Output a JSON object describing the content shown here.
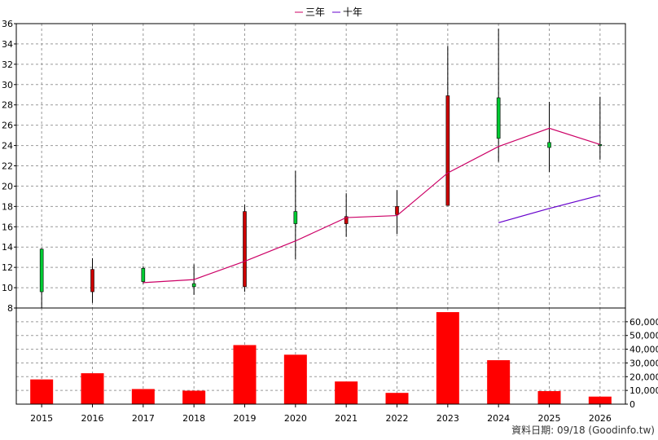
{
  "chart_data": [
    {
      "type": "candlestick",
      "legend": [
        {
          "name": "三年",
          "color": "#cc0066"
        },
        {
          "name": "十年",
          "color": "#6600cc"
        }
      ],
      "categories": [
        "2015",
        "2016",
        "2017",
        "2018",
        "2019",
        "2020",
        "2021",
        "2022",
        "2023",
        "2024",
        "2025",
        "2026"
      ],
      "ylim": [
        8,
        36
      ],
      "yticks": [
        8,
        10,
        12,
        14,
        16,
        18,
        20,
        22,
        24,
        26,
        28,
        30,
        32,
        34,
        36
      ],
      "candles": [
        {
          "x": "2015",
          "open": 9.6,
          "close": 13.8,
          "high": 13.9,
          "low": 8.0
        },
        {
          "x": "2016",
          "open": 11.8,
          "close": 9.6,
          "high": 12.9,
          "low": 8.5
        },
        {
          "x": "2017",
          "open": 10.6,
          "close": 11.9,
          "high": 12.1,
          "low": 10.4
        },
        {
          "x": "2018",
          "open": 10.1,
          "close": 10.4,
          "high": 12.3,
          "low": 9.3
        },
        {
          "x": "2019",
          "open": 17.5,
          "close": 10.1,
          "high": 18.2,
          "low": 9.6
        },
        {
          "x": "2020",
          "open": 16.3,
          "close": 17.5,
          "high": 21.5,
          "low": 12.8
        },
        {
          "x": "2021",
          "open": 17.0,
          "close": 16.3,
          "high": 19.3,
          "low": 15.0
        },
        {
          "x": "2022",
          "open": 18.0,
          "close": 17.2,
          "high": 19.6,
          "low": 15.3
        },
        {
          "x": "2023",
          "open": 28.9,
          "close": 18.1,
          "high": 33.8,
          "low": 18.1
        },
        {
          "x": "2024",
          "open": 24.7,
          "close": 28.7,
          "high": 35.5,
          "low": 22.4
        },
        {
          "x": "2025",
          "open": 23.8,
          "close": 24.3,
          "high": 28.3,
          "low": 21.4
        },
        {
          "x": "2026",
          "open": 24.1,
          "close": 24.1,
          "high": 28.8,
          "low": 22.6
        }
      ],
      "series": [
        {
          "name": "三年",
          "x": [
            "2017",
            "2018",
            "2019",
            "2020",
            "2021",
            "2022",
            "2023",
            "2024",
            "2025",
            "2026"
          ],
          "values": [
            10.5,
            10.8,
            12.6,
            14.6,
            16.9,
            17.1,
            21.3,
            23.9,
            25.7,
            24.1
          ]
        },
        {
          "name": "十年",
          "x": [
            "2024",
            "2025",
            "2026"
          ],
          "values": [
            16.4,
            17.8,
            19.1
          ]
        }
      ],
      "colors": {
        "up": "#00cc33",
        "down": "#cc0000",
        "wick": "#000000"
      }
    },
    {
      "type": "bar",
      "categories": [
        "2015",
        "2016",
        "2017",
        "2018",
        "2019",
        "2020",
        "2021",
        "2022",
        "2023",
        "2024",
        "2025",
        "2026"
      ],
      "values": [
        18000,
        22500,
        11000,
        9800,
        43000,
        36000,
        16500,
        8200,
        67000,
        32000,
        9500,
        5500
      ],
      "ylim": [
        0,
        70000
      ],
      "yticks": [
        "0",
        "10,000",
        "20,000",
        "30,000",
        "40,000",
        "50,000",
        "60,000"
      ],
      "ytick_values": [
        0,
        10000,
        20000,
        30000,
        40000,
        50000,
        60000
      ],
      "bar_color": "#ff0000"
    }
  ],
  "footer": "資料日期: 09/18 (Goodinfo.tw)"
}
